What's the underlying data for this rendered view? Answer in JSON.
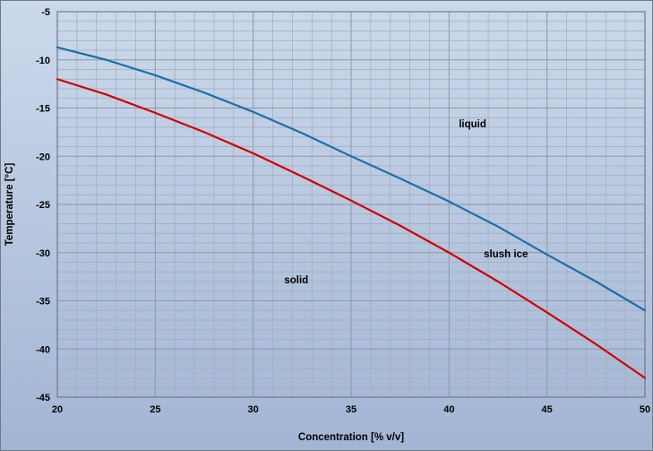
{
  "chart_data": {
    "type": "line",
    "title": "",
    "xlabel": "Concentration [% v/v]",
    "ylabel": "Temperature [°C]",
    "xlim": [
      20,
      50
    ],
    "ylim": [
      -45,
      -5
    ],
    "x_major_step": 5,
    "x_minor_step": 1,
    "y_major_step": 5,
    "y_minor_step": 1,
    "x_tick_labels": [
      "20",
      "25",
      "30",
      "35",
      "40",
      "45",
      "50"
    ],
    "y_tick_labels": [
      "-5",
      "-10",
      "-15",
      "-20",
      "-25",
      "-30",
      "-35",
      "-40",
      "-45"
    ],
    "x": [
      20,
      22.5,
      25,
      27.5,
      30,
      32.5,
      35,
      37.5,
      40,
      42.5,
      45,
      47.5,
      50
    ],
    "series": [
      {
        "name": "blue-upper-boundary",
        "color": "#1F6FA8",
        "values": [
          -8.7,
          -10.0,
          -11.6,
          -13.4,
          -15.4,
          -17.6,
          -20.0,
          -22.3,
          -24.7,
          -27.3,
          -30.2,
          -33.0,
          -36.0
        ]
      },
      {
        "name": "red-lower-boundary",
        "color": "#D00000",
        "values": [
          -12.0,
          -13.6,
          -15.5,
          -17.5,
          -19.7,
          -22.1,
          -24.6,
          -27.2,
          -30.0,
          -33.0,
          -36.2,
          -39.5,
          -43.0
        ]
      }
    ],
    "annotations": [
      {
        "text": "liquid",
        "x": 41.2,
        "y": -17.0
      },
      {
        "text": "slush ice",
        "x": 42.9,
        "y": -30.5
      },
      {
        "text": "solid",
        "x": 32.2,
        "y": -33.2
      }
    ],
    "grid": {
      "minor_color": "#a3abb8",
      "major_color": "#8d96a5"
    },
    "bg": {
      "top": "#ccd9ec",
      "bottom": "#a2b5d3"
    },
    "border_color": "#6f7a89",
    "text_color": "#000000",
    "legend": "none"
  }
}
